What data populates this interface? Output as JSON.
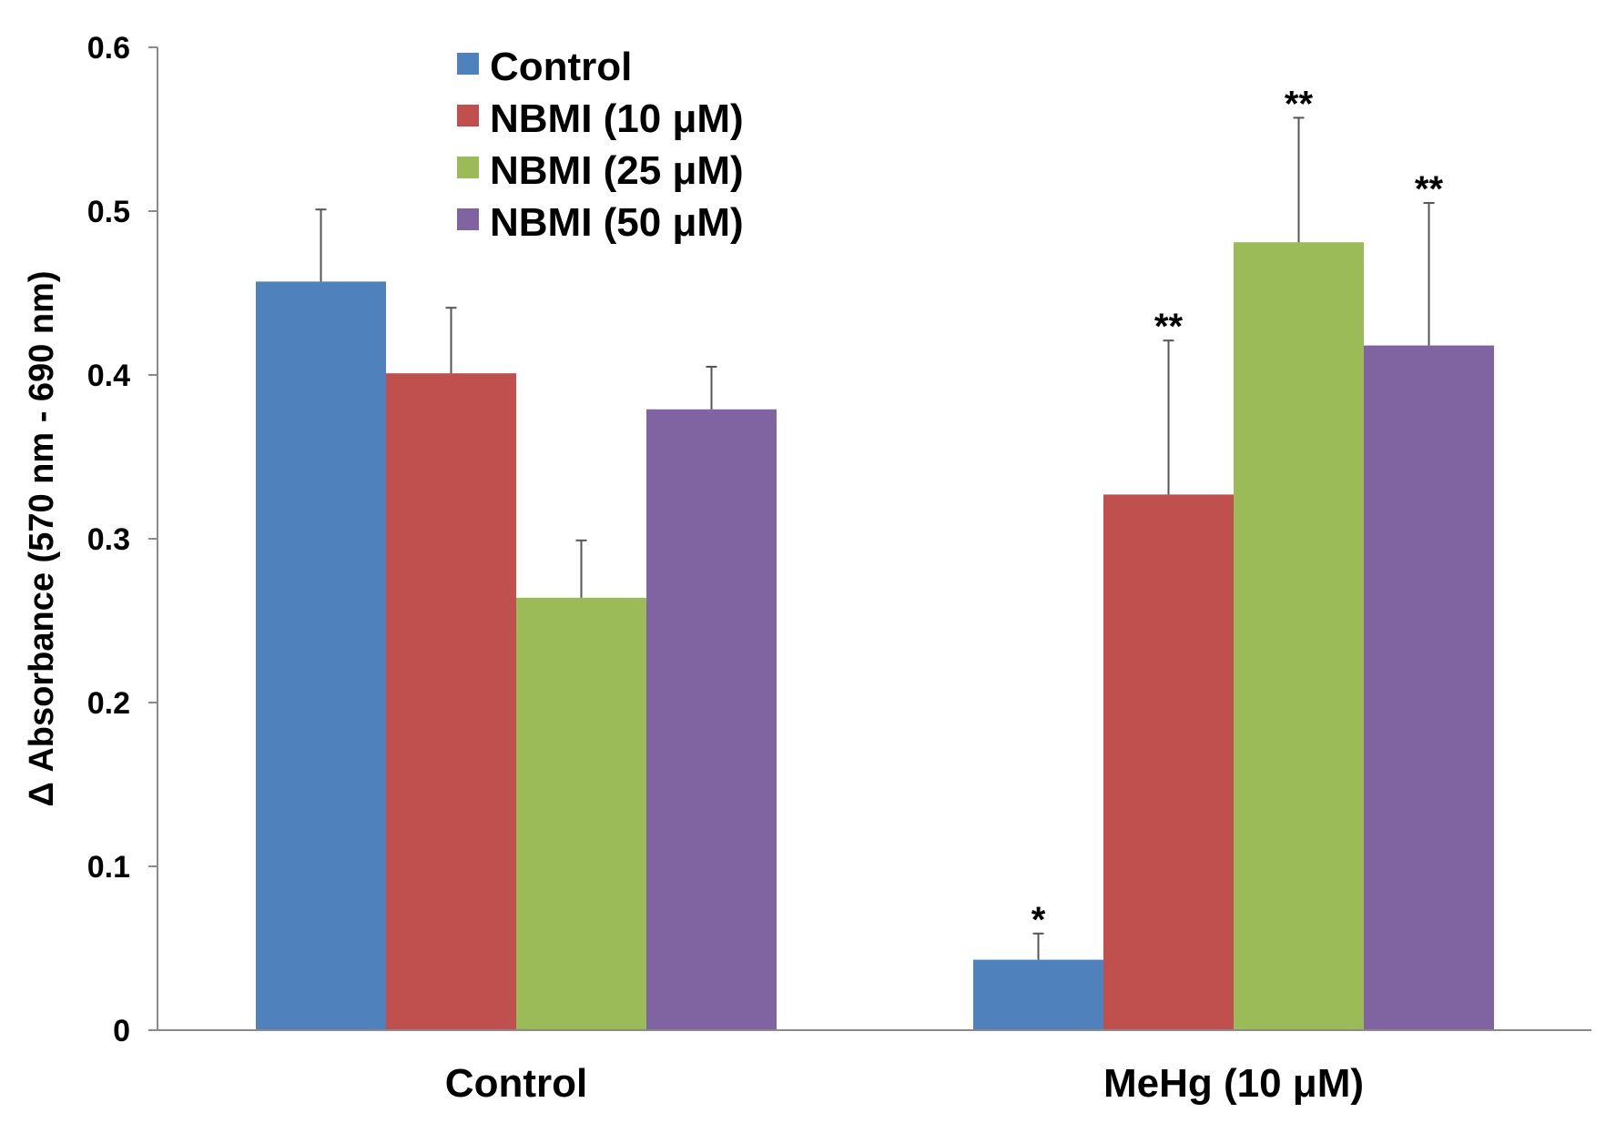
{
  "chart_data": {
    "type": "bar",
    "title": "",
    "xlabel": "",
    "ylabel": "Δ Absorbance (570 nm - 690 nm)",
    "ylim": [
      0,
      0.6
    ],
    "yticks": [
      "0",
      "0.1",
      "0.2",
      "0.3",
      "0.4",
      "0.5",
      "0.6"
    ],
    "categories": [
      "Control",
      "MeHg (10 μM)"
    ],
    "legend_position": "top-left",
    "series": [
      {
        "name": "Control",
        "color": "#4F81BD",
        "values": [
          0.457,
          0.043
        ],
        "errors": [
          0.044,
          0.016
        ],
        "significance": [
          "",
          "*"
        ]
      },
      {
        "name": "NBMI (10 μM)",
        "color": "#C0504D",
        "values": [
          0.401,
          0.327
        ],
        "errors": [
          0.04,
          0.094
        ],
        "significance": [
          "",
          "**"
        ]
      },
      {
        "name": "NBMI (25 μM)",
        "color": "#9BBB59",
        "values": [
          0.264,
          0.481
        ],
        "errors": [
          0.035,
          0.076
        ],
        "significance": [
          "",
          "**"
        ]
      },
      {
        "name": "NBMI (50 μM)",
        "color": "#8064A2",
        "values": [
          0.379,
          0.418
        ],
        "errors": [
          0.026,
          0.087
        ],
        "significance": [
          "",
          "**"
        ]
      }
    ]
  }
}
